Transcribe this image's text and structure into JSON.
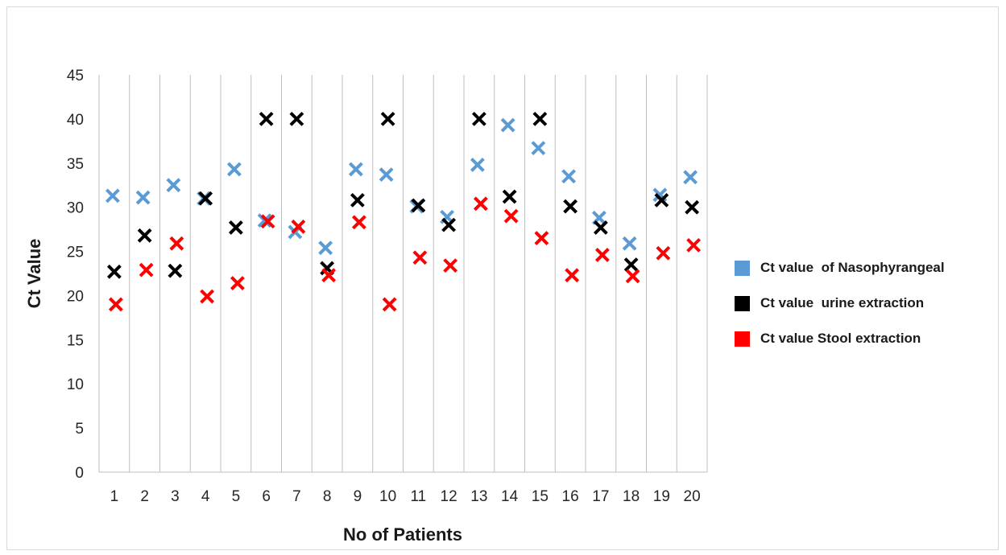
{
  "chart_data": {
    "type": "scatter",
    "title": "",
    "xlabel": "No of Patients",
    "ylabel": "Ct Value",
    "categories": [
      "1",
      "2",
      "3",
      "4",
      "5",
      "6",
      "7",
      "8",
      "9",
      "10",
      "11",
      "12",
      "13",
      "14",
      "15",
      "16",
      "17",
      "18",
      "19",
      "20"
    ],
    "ylim": [
      0,
      45
    ],
    "yticks": [
      0,
      5,
      10,
      15,
      20,
      25,
      30,
      35,
      40,
      45
    ],
    "grid": "vertical",
    "legend_position": "right",
    "marker": "x",
    "series": [
      {
        "name": "Ct value  of Nasophyrangeal",
        "color": "#5b9bd5",
        "values": [
          31.3,
          31.1,
          32.5,
          31.0,
          34.3,
          28.5,
          27.2,
          25.4,
          34.3,
          33.7,
          30.1,
          28.9,
          34.8,
          39.3,
          36.7,
          33.5,
          28.8,
          25.9,
          31.4,
          33.4
        ]
      },
      {
        "name": "Ct value  urine extraction",
        "color": "#000000",
        "values": [
          22.7,
          26.8,
          22.8,
          31.0,
          27.7,
          40.0,
          40.0,
          23.1,
          30.8,
          40.0,
          30.2,
          28.0,
          40.0,
          31.2,
          40.0,
          30.1,
          27.7,
          23.5,
          30.8,
          30.0
        ]
      },
      {
        "name": "Ct value Stool extraction",
        "color": "#ff0000",
        "values": [
          19.0,
          22.9,
          25.9,
          19.9,
          21.4,
          28.4,
          27.8,
          22.3,
          28.3,
          19.0,
          24.3,
          23.4,
          30.4,
          29.0,
          26.5,
          22.3,
          24.6,
          22.2,
          24.8,
          25.7
        ]
      }
    ]
  }
}
